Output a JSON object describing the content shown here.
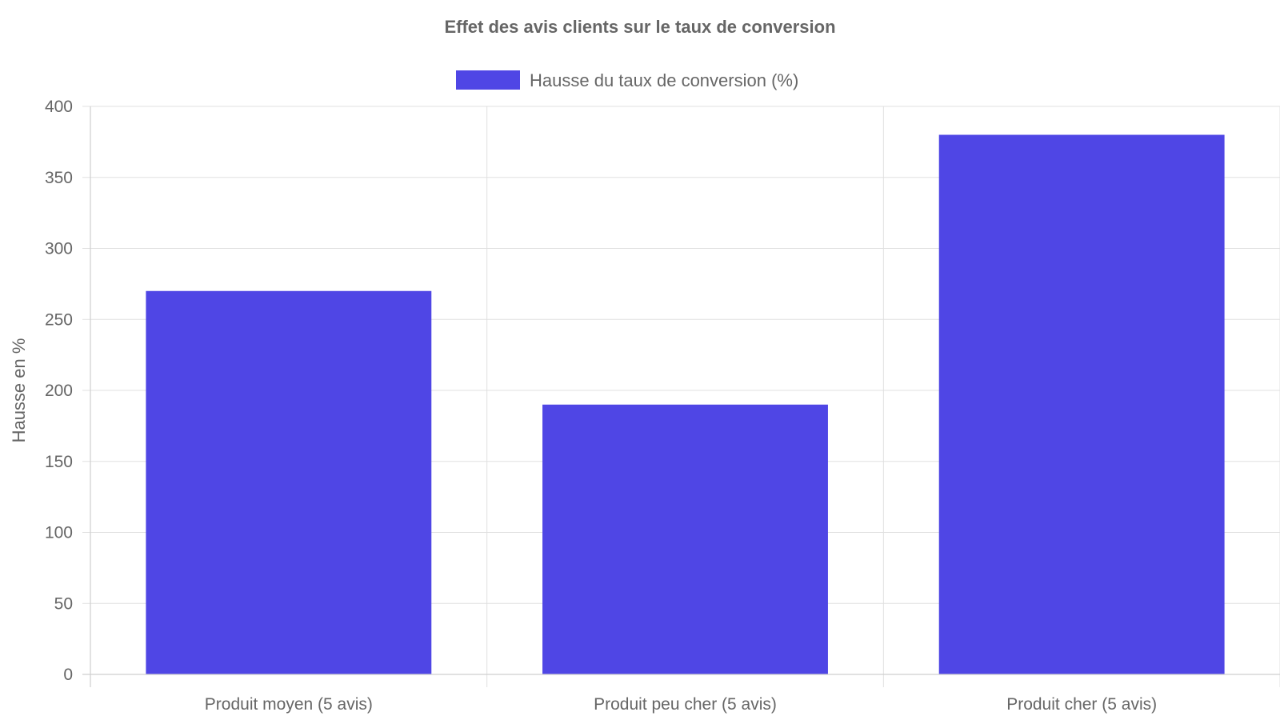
{
  "chart_data": {
    "type": "bar",
    "title": "Effet des avis clients sur le taux de conversion",
    "categories": [
      "Produit moyen (5 avis)",
      "Produit peu cher (5 avis)",
      "Produit cher (5 avis)"
    ],
    "series": [
      {
        "name": "Hausse du taux de conversion (%)",
        "values": [
          270,
          190,
          380
        ],
        "color": "#4f46e5"
      }
    ],
    "xlabel": "",
    "ylabel": "Hausse en %",
    "ylim": [
      0,
      400
    ],
    "yticks": [
      "0",
      "50",
      "100",
      "150",
      "200",
      "250",
      "300",
      "350",
      "400"
    ],
    "legend_position": "top-center",
    "grid": true
  }
}
